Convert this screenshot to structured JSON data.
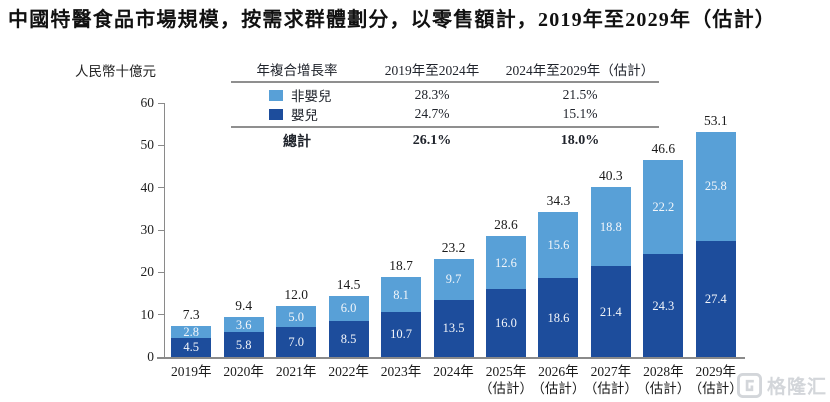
{
  "title": "中國特醫食品市場規模，按需求群體劃分，以零售額計，2019年至2029年（估計）",
  "colors": {
    "infant": "#1d4d9c",
    "non_infant": "#58a0d7",
    "axis": "#8a8a8a",
    "watermark": "#d3d6da"
  },
  "cagr_table": {
    "header": [
      "年複合增長率",
      "2019年至2024年",
      "2024年至2029年（估計）"
    ],
    "rows": [
      {
        "label": "非嬰兒",
        "series": "non_infant",
        "values": [
          "28.3%",
          "21.5%"
        ]
      },
      {
        "label": "嬰兒",
        "series": "infant",
        "values": [
          "24.7%",
          "15.1%"
        ]
      }
    ],
    "total_row": {
      "label": "總計",
      "values": [
        "26.1%",
        "18.0%"
      ]
    }
  },
  "chart_data": {
    "type": "bar",
    "stacked": true,
    "title": "中國特醫食品市場規模，按需求群體劃分，以零售額計，2019年至2029年（估計）",
    "ylabel": "人民幣十億元",
    "ylim": [
      0,
      60
    ],
    "yticks": [
      0,
      10,
      20,
      30,
      40,
      50,
      60
    ],
    "grid": false,
    "legend_position": "table-overlay",
    "categories": [
      {
        "year": "2019年",
        "note": ""
      },
      {
        "year": "2020年",
        "note": ""
      },
      {
        "year": "2021年",
        "note": ""
      },
      {
        "year": "2022年",
        "note": ""
      },
      {
        "year": "2023年",
        "note": ""
      },
      {
        "year": "2024年",
        "note": ""
      },
      {
        "year": "2025年",
        "note": "（估計）"
      },
      {
        "year": "2026年",
        "note": "（估計）"
      },
      {
        "year": "2027年",
        "note": "（估計）"
      },
      {
        "year": "2028年",
        "note": "（估計）"
      },
      {
        "year": "2029年",
        "note": "（估計）"
      }
    ],
    "series": [
      {
        "name": "嬰兒",
        "color": "#1d4d9c",
        "values": [
          4.5,
          5.8,
          7.0,
          8.5,
          10.7,
          13.5,
          16.0,
          18.6,
          21.4,
          24.3,
          27.4
        ]
      },
      {
        "name": "非嬰兒",
        "color": "#58a0d7",
        "values": [
          2.8,
          3.6,
          5.0,
          6.0,
          8.1,
          9.7,
          12.6,
          15.6,
          18.8,
          22.2,
          25.8
        ]
      }
    ],
    "totals": [
      7.3,
      9.4,
      12.0,
      14.5,
      18.7,
      23.2,
      28.6,
      34.3,
      40.3,
      46.6,
      53.1
    ]
  },
  "watermark": {
    "text": "格隆汇"
  }
}
